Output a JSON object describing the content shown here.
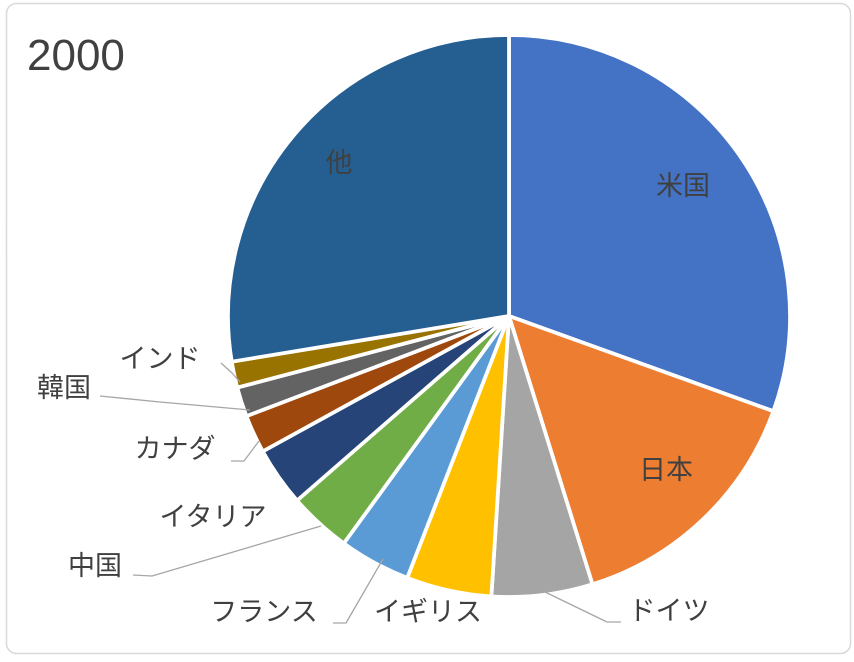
{
  "title": "2000",
  "chart_data": {
    "type": "pie",
    "title": "2000",
    "unit": "share of total (%)",
    "direction": "clockwise",
    "start_angle_deg": 0,
    "legend": "none",
    "labels": [
      "米国",
      "日本",
      "ドイツ",
      "イギリス",
      "フランス",
      "中国",
      "イタリア",
      "カナダ",
      "韓国",
      "インド",
      "他"
    ],
    "values": [
      30.5,
      14.7,
      5.8,
      4.9,
      4.1,
      3.6,
      3.4,
      2.2,
      1.7,
      1.5,
      27.6
    ],
    "colors": [
      "#4472C4",
      "#ED7D31",
      "#A5A5A5",
      "#FFC000",
      "#5B9BD5",
      "#70AD47",
      "#264478",
      "#9E480E",
      "#636363",
      "#997300",
      "#255E91"
    ],
    "title_color": "#404040",
    "label_color": "#404040",
    "leader_line_color": "#A6A6A6",
    "frame_border_color": "#D9D9D9",
    "background_color": "#FFFFFF"
  }
}
